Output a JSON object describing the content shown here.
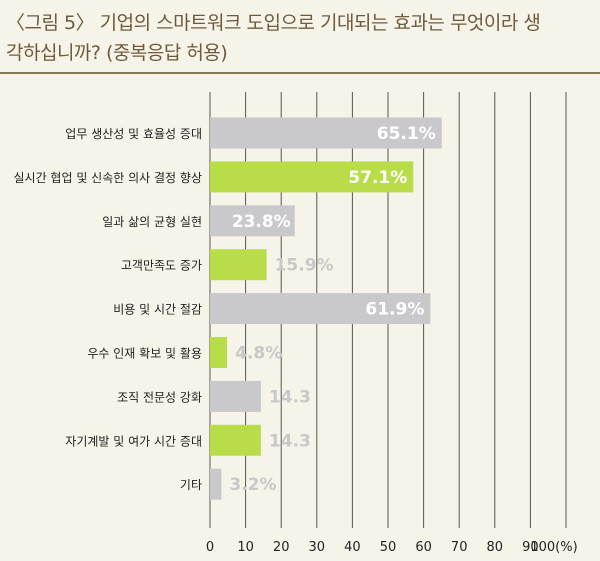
{
  "title": {
    "line1": "〈그림 5〉 기업의 스마트워크 도입으로 기대되는 효과는 무엇이라 생",
    "line2": "각하십니까? (중복응답 허용)"
  },
  "colors": {
    "background": "#f6f4e9",
    "title": "#6e5a3d",
    "gray_bar": "#c9c9cc",
    "green_bar": "#b9dd48",
    "gridline": "#555555"
  },
  "chart_data": {
    "type": "bar",
    "orientation": "horizontal",
    "categories": [
      "업무 생산성 및 효율성 증대",
      "실시간 협업 및 신속한 의사 결정 향상",
      "일과 삶의 균형 실현",
      "고객만족도 증가",
      "비용 및 시간 절감",
      "우수 인재 확보 및 활용",
      "조직 전문성 강화",
      "자기계발 및 여가 시간 증대",
      "기타"
    ],
    "values": [
      65.1,
      57.1,
      23.8,
      15.9,
      61.9,
      4.8,
      14.3,
      14.3,
      3.2
    ],
    "value_labels": [
      "65.1%",
      "57.1%",
      "23.8%",
      "15.9%",
      "61.9%",
      "4.8%",
      "14.3",
      "14.3",
      "3.2%"
    ],
    "bar_colors": [
      "gray",
      "green",
      "gray",
      "green",
      "gray",
      "green",
      "gray",
      "green",
      "gray"
    ],
    "xlim": [
      0,
      100
    ],
    "x_ticks": [
      "0",
      "10",
      "20",
      "30",
      "40",
      "50",
      "60",
      "70",
      "80",
      "90",
      "100(%)"
    ],
    "grid": "vertical"
  }
}
